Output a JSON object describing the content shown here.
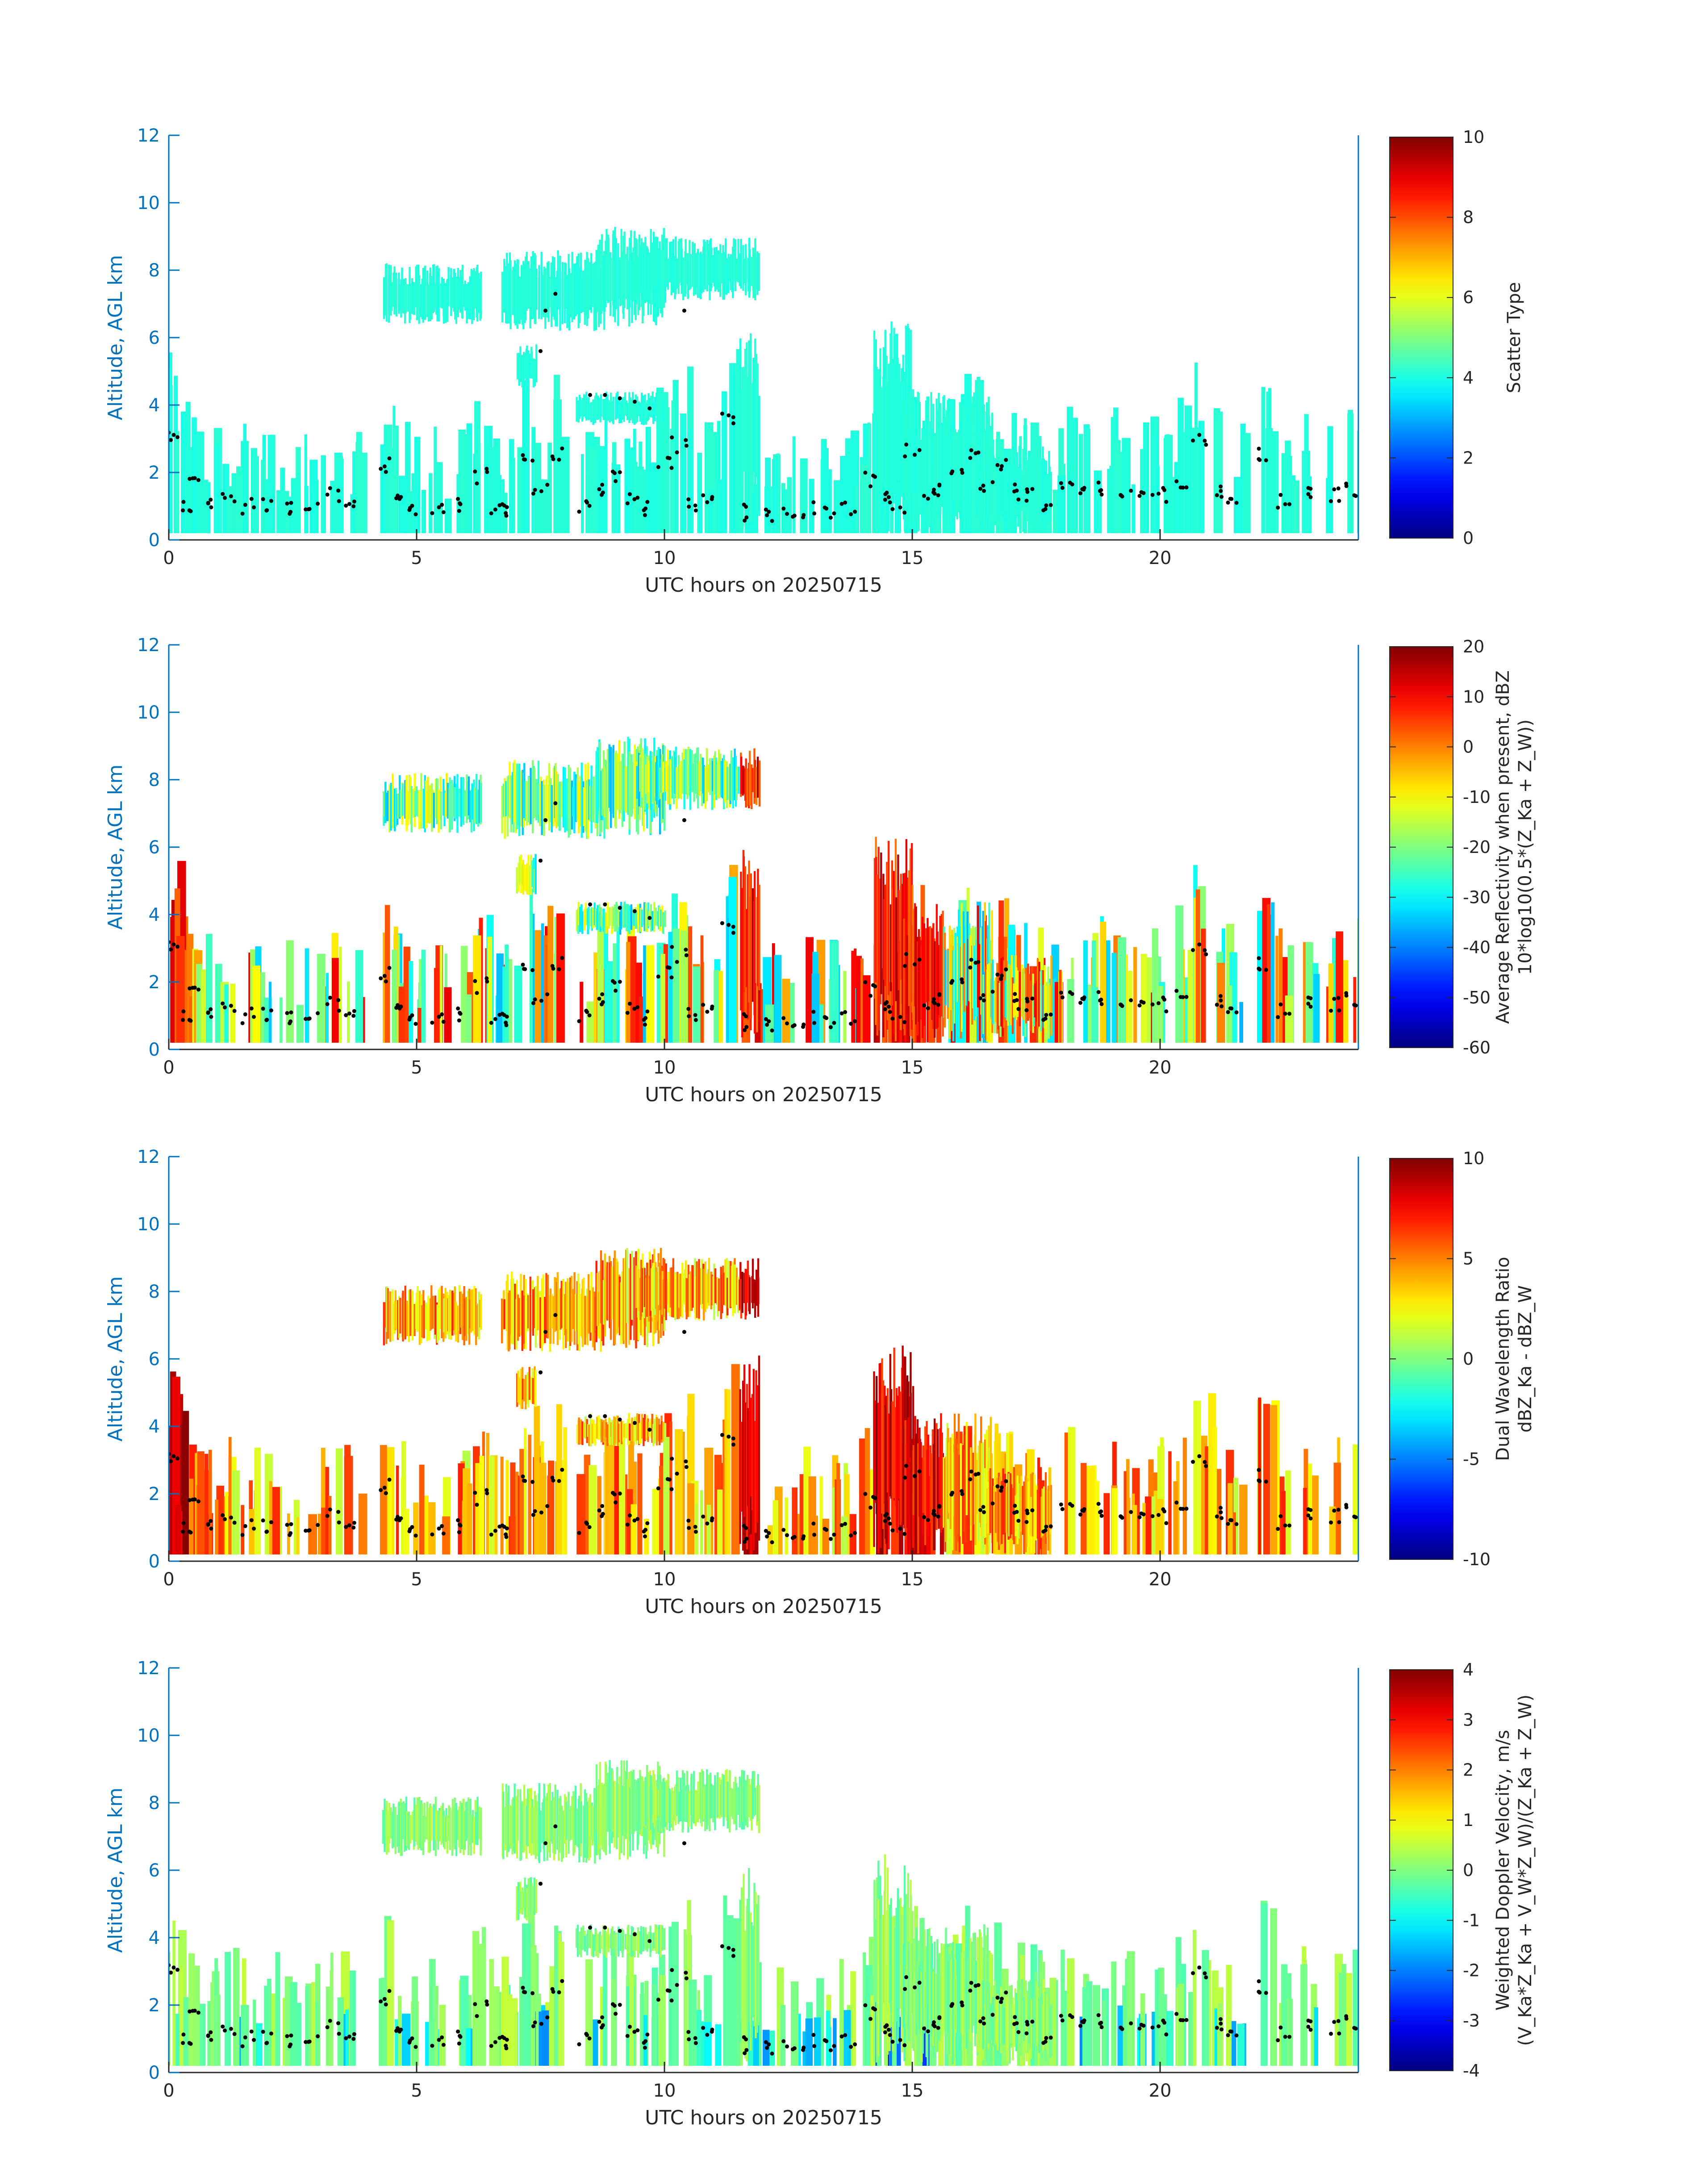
{
  "figure": {
    "date": "20250715"
  },
  "chart_data": [
    {
      "type": "heatmap",
      "panel": "scatter-type",
      "xlabel": "UTC hours on 20250715",
      "ylabel": "Altitude, AGL km",
      "xlim": [
        0,
        24
      ],
      "ylim": [
        0,
        12
      ],
      "xticks": [
        0,
        5,
        10,
        15,
        20
      ],
      "yticks": [
        0,
        2,
        4,
        6,
        8,
        10,
        12
      ],
      "colorbar": {
        "label_lines": [
          "Scatter Type"
        ],
        "range": [
          0,
          10
        ],
        "ticks": [
          0,
          2,
          4,
          6,
          8,
          10
        ]
      },
      "field": "scatter_type",
      "dominant_value": 4
    },
    {
      "type": "heatmap",
      "panel": "average-reflectivity",
      "xlabel": "UTC hours on 20250715",
      "ylabel": "Altitude, AGL km",
      "xlim": [
        0,
        24
      ],
      "ylim": [
        0,
        12
      ],
      "xticks": [
        0,
        5,
        10,
        15,
        20
      ],
      "yticks": [
        0,
        2,
        4,
        6,
        8,
        10,
        12
      ],
      "colorbar": {
        "label_lines": [
          "Average Reflectivity when present, dBZ",
          "10*log10(0.5*(Z_Ka + Z_W))"
        ],
        "range": [
          -60,
          20
        ],
        "ticks": [
          -60,
          -50,
          -40,
          -30,
          -20,
          -10,
          0,
          10,
          20
        ]
      },
      "field": "reflectivity_dbz"
    },
    {
      "type": "heatmap",
      "panel": "dual-wavelength-ratio",
      "xlabel": "UTC hours on 20250715",
      "ylabel": "Altitude, AGL km",
      "xlim": [
        0,
        24
      ],
      "ylim": [
        0,
        12
      ],
      "xticks": [
        0,
        5,
        10,
        15,
        20
      ],
      "yticks": [
        0,
        2,
        4,
        6,
        8,
        10,
        12
      ],
      "colorbar": {
        "label_lines": [
          "Dual Wavelength Ratio",
          "dBZ_Ka - dBZ_W"
        ],
        "range": [
          -10,
          10
        ],
        "ticks": [
          -10,
          -5,
          0,
          5,
          10
        ]
      },
      "field": "dwr_db"
    },
    {
      "type": "heatmap",
      "panel": "weighted-doppler-velocity",
      "xlabel": "UTC hours on 20250715",
      "ylabel": "Altitude, AGL km",
      "xlim": [
        0,
        24
      ],
      "ylim": [
        0,
        12
      ],
      "xticks": [
        0,
        5,
        10,
        15,
        20
      ],
      "yticks": [
        0,
        2,
        4,
        6,
        8,
        10,
        12
      ],
      "colorbar": {
        "label_lines": [
          "Weighted Doppler Velocity, m/s",
          "(V_Ka*Z_Ka + V_W*Z_W)/(Z_Ka + Z_W)"
        ],
        "range": [
          -4,
          4
        ],
        "ticks": [
          -4,
          -3,
          -2,
          -1,
          0,
          1,
          2,
          3,
          4
        ]
      },
      "field": "velocity_ms"
    }
  ],
  "echo_regions": [
    {
      "t0": 4.3,
      "t1": 6.3,
      "z0": 6.4,
      "z1": 8.2
    },
    {
      "t0": 6.7,
      "t1": 8.8,
      "z0": 6.2,
      "z1": 8.6
    },
    {
      "t0": 8.6,
      "t1": 10.0,
      "z0": 6.3,
      "z1": 9.3
    },
    {
      "t0": 9.4,
      "t1": 11.9,
      "z0": 7.1,
      "z1": 9.0
    },
    {
      "t0": 7.0,
      "t1": 7.4,
      "z0": 4.5,
      "z1": 5.8
    },
    {
      "t0": 8.2,
      "t1": 10.0,
      "z0": 3.4,
      "z1": 4.4
    },
    {
      "t0": 14.2,
      "t1": 15.0,
      "z0": 0.2,
      "z1": 6.5
    },
    {
      "t0": 14.8,
      "t1": 16.6,
      "z0": 0.2,
      "z1": 4.4
    },
    {
      "t0": 16.4,
      "t1": 17.8,
      "z0": 0.2,
      "z1": 2.8
    },
    {
      "t0": 11.5,
      "t1": 11.9,
      "z0": 0.3,
      "z1": 6.2
    }
  ],
  "cloud_base_time_hours": [
    0.1,
    0.3,
    0.5,
    0.8,
    1.2,
    1.6,
    2.0,
    2.4,
    2.9,
    3.3,
    3.7,
    4.4,
    4.6,
    5.0,
    5.4,
    5.9,
    6.3,
    6.6,
    6.9,
    7.2,
    7.5,
    7.8,
    8.4,
    8.8,
    9.1,
    9.4,
    9.7,
    10.0,
    10.3,
    10.6,
    10.9,
    11.3,
    11.7,
    12.1,
    12.5,
    12.9,
    13.3,
    13.7,
    14.1,
    14.4,
    14.7,
    15.0,
    15.3,
    15.6,
    15.9,
    16.2,
    16.5,
    16.8,
    17.1,
    17.4,
    17.7,
    18.1,
    18.5,
    18.9,
    19.3,
    19.7,
    20.0,
    20.4,
    20.8,
    21.2,
    21.5,
    22.1,
    22.5,
    23.0,
    23.5,
    23.9
  ],
  "cloud_base_alt_km": [
    3.2,
    1.0,
    1.6,
    1.0,
    1.2,
    1.0,
    1.1,
    0.9,
    1.0,
    1.3,
    1.0,
    2.2,
    1.2,
    0.9,
    0.9,
    1.0,
    1.9,
    1.0,
    0.9,
    2.4,
    1.4,
    2.5,
    1.0,
    1.5,
    1.8,
    1.2,
    0.9,
    2.2,
    2.8,
    1.0,
    1.1,
    3.5,
    0.8,
    0.7,
    0.7,
    0.9,
    0.8,
    0.9,
    1.8,
    1.2,
    1.0,
    2.6,
    1.3,
    1.4,
    2.1,
    2.5,
    1.7,
    2.2,
    1.4,
    1.3,
    1.1,
    1.5,
    1.3,
    1.5,
    1.3,
    1.2,
    1.3,
    1.8,
    3.0,
    1.5,
    1.1,
    2.6,
    1.2,
    1.3,
    1.3,
    1.5
  ],
  "layer_base_points": [
    {
      "t": 8.5,
      "z": 4.3
    },
    {
      "t": 8.8,
      "z": 4.3
    },
    {
      "t": 9.1,
      "z": 4.2
    },
    {
      "t": 9.4,
      "z": 4.1
    },
    {
      "t": 9.7,
      "z": 3.9
    },
    {
      "t": 7.5,
      "z": 5.6
    },
    {
      "t": 7.6,
      "z": 6.8
    },
    {
      "t": 7.8,
      "z": 7.3
    },
    {
      "t": 10.4,
      "z": 6.8
    }
  ]
}
